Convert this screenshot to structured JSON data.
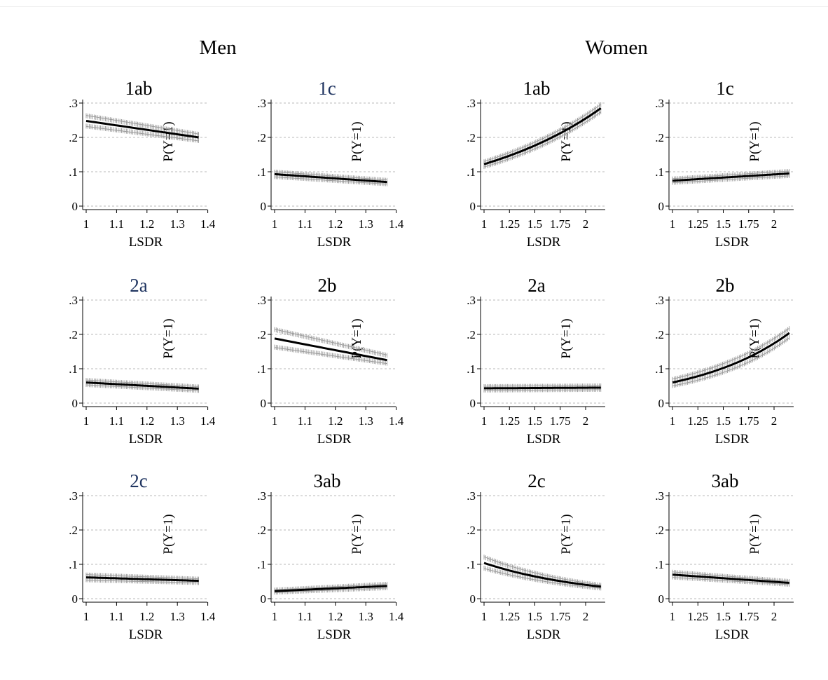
{
  "colors": {
    "title_dark": "#000000",
    "title_blue": "#1f3460",
    "ci": "#8c8c8c",
    "line": "#000000",
    "grid": "#b8b8b8"
  },
  "groups": [
    {
      "id": "men",
      "title": "Men"
    },
    {
      "id": "women",
      "title": "Women"
    }
  ],
  "chart_data": [
    {
      "group": "men",
      "type": "line",
      "title": "1ab",
      "title_color": "#000000",
      "xlabel": "LSDR",
      "ylabel": "P(Y=1)",
      "xlim": [
        1,
        1.37
      ],
      "ylim": [
        0,
        0.3
      ],
      "xticks": [
        "1",
        "1.1",
        "1.2",
        "1.3",
        "1.4"
      ],
      "xtick_values": [
        1,
        1.1,
        1.2,
        1.3,
        1.4
      ],
      "yticks": [
        "0",
        ".1",
        ".2",
        ".3"
      ],
      "grid": true,
      "series": [
        {
          "x": [
            1,
            1.37
          ],
          "y": [
            0.248,
            0.2
          ],
          "ci_low": [
            0.232,
            0.19
          ],
          "ci_high": [
            0.264,
            0.21
          ],
          "shape": "linear"
        }
      ]
    },
    {
      "group": "men",
      "type": "line",
      "title": "1c",
      "title_color": "#1f3460",
      "xlabel": "LSDR",
      "ylabel": "P(Y=1)",
      "xlim": [
        1,
        1.37
      ],
      "ylim": [
        0,
        0.3
      ],
      "xticks": [
        "1",
        "1.1",
        "1.2",
        "1.3",
        "1.4"
      ],
      "xtick_values": [
        1,
        1.1,
        1.2,
        1.3,
        1.4
      ],
      "yticks": [
        "0",
        ".1",
        ".2",
        ".3"
      ],
      "grid": true,
      "series": [
        {
          "x": [
            1,
            1.37
          ],
          "y": [
            0.093,
            0.07
          ],
          "ci_low": [
            0.085,
            0.064
          ],
          "ci_high": [
            0.1,
            0.076
          ],
          "shape": "linear"
        }
      ]
    },
    {
      "group": "women",
      "type": "line",
      "title": "1ab",
      "title_color": "#000000",
      "xlabel": "LSDR",
      "ylabel": "P(Y=1)",
      "xlim": [
        1,
        2.15
      ],
      "ylim": [
        0,
        0.3
      ],
      "xticks": [
        "1",
        "1.25",
        "1.5",
        "1.75",
        "2"
      ],
      "xtick_values": [
        1,
        1.25,
        1.5,
        1.75,
        2
      ],
      "yticks": [
        "0",
        ".1",
        ".2",
        ".3"
      ],
      "grid": true,
      "series": [
        {
          "x": [
            1,
            2.15
          ],
          "y": [
            0.122,
            0.285
          ],
          "ci_low": [
            0.114,
            0.274
          ],
          "ci_high": [
            0.13,
            0.296
          ],
          "shape": "exponential"
        }
      ]
    },
    {
      "group": "women",
      "type": "line",
      "title": "1c",
      "title_color": "#000000",
      "xlabel": "LSDR",
      "ylabel": "P(Y=1)",
      "xlim": [
        1,
        2.15
      ],
      "ylim": [
        0,
        0.3
      ],
      "xticks": [
        "1",
        "1.25",
        "1.5",
        "1.75",
        "2"
      ],
      "xtick_values": [
        1,
        1.25,
        1.5,
        1.75,
        2
      ],
      "yticks": [
        "0",
        ".1",
        ".2",
        ".3"
      ],
      "grid": true,
      "series": [
        {
          "x": [
            1,
            2.15
          ],
          "y": [
            0.074,
            0.095
          ],
          "ci_low": [
            0.068,
            0.088
          ],
          "ci_high": [
            0.08,
            0.102
          ],
          "shape": "linear"
        }
      ]
    },
    {
      "group": "men",
      "type": "line",
      "title": "2a",
      "title_color": "#1f3460",
      "xlabel": "LSDR",
      "ylabel": "P(Y=1)",
      "xlim": [
        1,
        1.37
      ],
      "ylim": [
        0,
        0.3
      ],
      "xticks": [
        "1",
        "1.1",
        "1.2",
        "1.3",
        "1.4"
      ],
      "xtick_values": [
        1,
        1.1,
        1.2,
        1.3,
        1.4
      ],
      "yticks": [
        "0",
        ".1",
        ".2",
        ".3"
      ],
      "grid": true,
      "series": [
        {
          "x": [
            1,
            1.37
          ],
          "y": [
            0.06,
            0.042
          ],
          "ci_low": [
            0.053,
            0.036
          ],
          "ci_high": [
            0.067,
            0.048
          ],
          "shape": "linear"
        }
      ]
    },
    {
      "group": "men",
      "type": "line",
      "title": "2b",
      "title_color": "#000000",
      "xlabel": "LSDR",
      "ylabel": "P(Y=1)",
      "xlim": [
        1,
        1.37
      ],
      "ylim": [
        0,
        0.3
      ],
      "xticks": [
        "1",
        "1.1",
        "1.2",
        "1.3",
        "1.4"
      ],
      "xtick_values": [
        1,
        1.1,
        1.2,
        1.3,
        1.4
      ],
      "yticks": [
        "0",
        ".1",
        ".2",
        ".3"
      ],
      "grid": true,
      "series": [
        {
          "x": [
            1,
            1.37
          ],
          "y": [
            0.188,
            0.125
          ],
          "ci_low": [
            0.162,
            0.115
          ],
          "ci_high": [
            0.215,
            0.14
          ],
          "shape": "linear"
        }
      ]
    },
    {
      "group": "women",
      "type": "line",
      "title": "2a",
      "title_color": "#000000",
      "xlabel": "LSDR",
      "ylabel": "P(Y=1)",
      "xlim": [
        1,
        2.15
      ],
      "ylim": [
        0,
        0.3
      ],
      "xticks": [
        "1",
        "1.25",
        "1.5",
        "1.75",
        "2"
      ],
      "xtick_values": [
        1,
        1.25,
        1.5,
        1.75,
        2
      ],
      "yticks": [
        "0",
        ".1",
        ".2",
        ".3"
      ],
      "grid": true,
      "series": [
        {
          "x": [
            1,
            2.15
          ],
          "y": [
            0.043,
            0.045
          ],
          "ci_low": [
            0.037,
            0.039
          ],
          "ci_high": [
            0.049,
            0.051
          ],
          "shape": "linear"
        }
      ]
    },
    {
      "group": "women",
      "type": "line",
      "title": "2b",
      "title_color": "#000000",
      "xlabel": "LSDR",
      "ylabel": "P(Y=1)",
      "xlim": [
        1,
        2.15
      ],
      "ylim": [
        0,
        0.3
      ],
      "xticks": [
        "1",
        "1.25",
        "1.5",
        "1.75",
        "2"
      ],
      "xtick_values": [
        1,
        1.25,
        1.5,
        1.75,
        2
      ],
      "yticks": [
        "0",
        ".1",
        ".2",
        ".3"
      ],
      "grid": true,
      "series": [
        {
          "x": [
            1,
            2.15
          ],
          "y": [
            0.06,
            0.204
          ],
          "ci_low": [
            0.05,
            0.19
          ],
          "ci_high": [
            0.07,
            0.218
          ],
          "shape": "exponential"
        }
      ]
    },
    {
      "group": "men",
      "type": "line",
      "title": "2c",
      "title_color": "#1f3460",
      "xlabel": "LSDR",
      "ylabel": "P(Y=1)",
      "xlim": [
        1,
        1.37
      ],
      "ylim": [
        0,
        0.3
      ],
      "xticks": [
        "1",
        "1.1",
        "1.2",
        "1.3",
        "1.4"
      ],
      "xtick_values": [
        1,
        1.1,
        1.2,
        1.3,
        1.4
      ],
      "yticks": [
        "0",
        ".1",
        ".2",
        ".3"
      ],
      "grid": true,
      "series": [
        {
          "x": [
            1,
            1.37
          ],
          "y": [
            0.062,
            0.052
          ],
          "ci_low": [
            0.054,
            0.046
          ],
          "ci_high": [
            0.07,
            0.058
          ],
          "shape": "linear"
        }
      ]
    },
    {
      "group": "men",
      "type": "line",
      "title": "3ab",
      "title_color": "#000000",
      "xlabel": "LSDR",
      "ylabel": "P(Y=1)",
      "xlim": [
        1,
        1.37
      ],
      "ylim": [
        0,
        0.3
      ],
      "xticks": [
        "1",
        "1.1",
        "1.2",
        "1.3",
        "1.4"
      ],
      "xtick_values": [
        1,
        1.1,
        1.2,
        1.3,
        1.4
      ],
      "yticks": [
        "0",
        ".1",
        ".2",
        ".3"
      ],
      "grid": true,
      "series": [
        {
          "x": [
            1,
            1.37
          ],
          "y": [
            0.022,
            0.037
          ],
          "ci_low": [
            0.018,
            0.031
          ],
          "ci_high": [
            0.026,
            0.043
          ],
          "shape": "linear"
        }
      ]
    },
    {
      "group": "women",
      "type": "line",
      "title": "2c",
      "title_color": "#000000",
      "xlabel": "LSDR",
      "ylabel": "P(Y=1)",
      "xlim": [
        1,
        2.15
      ],
      "ylim": [
        0,
        0.3
      ],
      "xticks": [
        "1",
        "1.25",
        "1.5",
        "1.75",
        "2"
      ],
      "xtick_values": [
        1,
        1.25,
        1.5,
        1.75,
        2
      ],
      "yticks": [
        "0",
        ".1",
        ".2",
        ".3"
      ],
      "grid": true,
      "series": [
        {
          "x": [
            1,
            2.15
          ],
          "y": [
            0.104,
            0.035
          ],
          "ci_low": [
            0.088,
            0.03
          ],
          "ci_high": [
            0.122,
            0.04
          ],
          "shape": "exponential"
        }
      ]
    },
    {
      "group": "women",
      "type": "line",
      "title": "3ab",
      "title_color": "#000000",
      "xlabel": "LSDR",
      "ylabel": "P(Y=1)",
      "xlim": [
        1,
        2.15
      ],
      "ylim": [
        0,
        0.3
      ],
      "xticks": [
        "1",
        "1.25",
        "1.5",
        "1.75",
        "2"
      ],
      "xtick_values": [
        1,
        1.25,
        1.5,
        1.75,
        2
      ],
      "yticks": [
        "0",
        ".1",
        ".2",
        ".3"
      ],
      "grid": true,
      "series": [
        {
          "x": [
            1,
            2.15
          ],
          "y": [
            0.07,
            0.046
          ],
          "ci_low": [
            0.062,
            0.041
          ],
          "ci_high": [
            0.078,
            0.051
          ],
          "shape": "linear"
        }
      ]
    }
  ]
}
